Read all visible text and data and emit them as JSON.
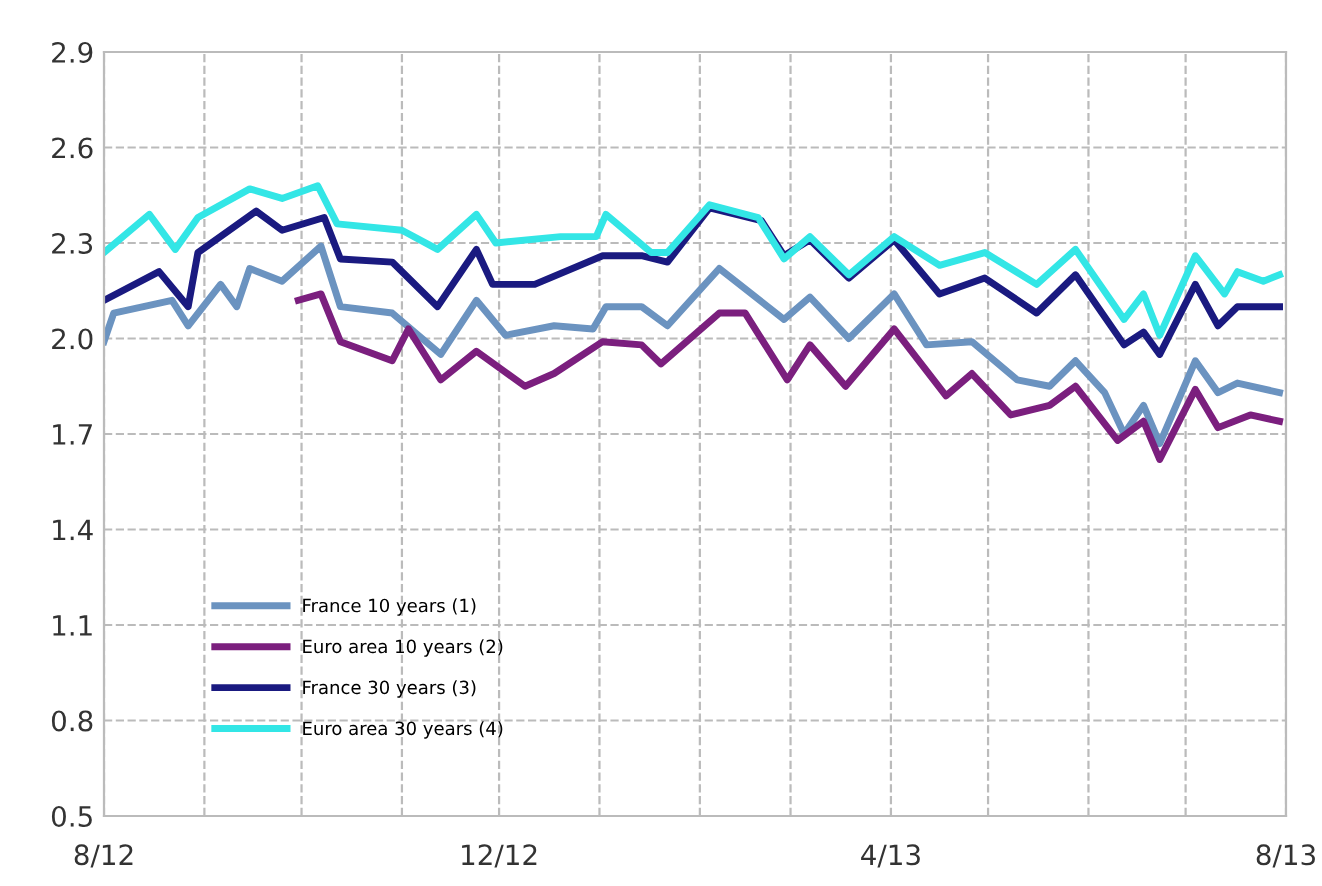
{
  "chart_data": {
    "type": "line",
    "xlim": [
      "2012-08-01",
      "2013-08-01"
    ],
    "xticks": [
      {
        "value": "2012-08-01",
        "label": "8/12"
      },
      {
        "value": "2012-09-01",
        "label": null
      },
      {
        "value": "2012-10-01",
        "label": null
      },
      {
        "value": "2012-11-01",
        "label": null
      },
      {
        "value": "2012-12-01",
        "label": "12/12"
      },
      {
        "value": "2013-01-01",
        "label": null
      },
      {
        "value": "2013-02-01",
        "label": null
      },
      {
        "value": "2013-03-01",
        "label": null
      },
      {
        "value": "2013-04-01",
        "label": "4/13"
      },
      {
        "value": "2013-05-01",
        "label": null
      },
      {
        "value": "2013-06-01",
        "label": null
      },
      {
        "value": "2013-07-01",
        "label": null
      },
      {
        "value": "2013-08-01",
        "label": "8/13"
      }
    ],
    "ylim": [
      0.5,
      2.9
    ],
    "yticks": [
      {
        "value": 0.5,
        "label": "0.5"
      },
      {
        "value": 0.8,
        "label": "0.8"
      },
      {
        "value": 1.1,
        "label": "1.1"
      },
      {
        "value": 1.4,
        "label": "1.4"
      },
      {
        "value": 1.7,
        "label": "1.7"
      },
      {
        "value": 2.0,
        "label": "2.0"
      },
      {
        "value": 2.3,
        "label": "2.3"
      },
      {
        "value": 2.6,
        "label": "2.6"
      },
      {
        "value": 2.9,
        "label": "2.9"
      }
    ],
    "grid": true,
    "legend": "bottom left",
    "marker": "none",
    "line_style": "solid",
    "series": [
      {
        "name": "France 10 years (1)",
        "color": "#6b93c0",
        "x": [
          "2012-08-01",
          "2012-08-04",
          "2012-08-22",
          "2012-08-27",
          "2012-09-06",
          "2012-09-11",
          "2012-09-15",
          "2012-09-25",
          "2012-10-07",
          "2012-10-13",
          "2012-10-29",
          "2012-11-13",
          "2012-11-24",
          "2012-12-03",
          "2012-12-18",
          "2012-12-30",
          "2013-01-03",
          "2013-01-14",
          "2013-01-22",
          "2013-02-07",
          "2013-02-27",
          "2013-03-07",
          "2013-03-19",
          "2013-04-02",
          "2013-04-12",
          "2013-04-26",
          "2013-05-10",
          "2013-05-20",
          "2013-05-28",
          "2013-06-06",
          "2013-06-12",
          "2013-06-18",
          "2013-06-23",
          "2013-07-04",
          "2013-07-11",
          "2013-07-17",
          "2013-07-30"
        ],
        "values": [
          1.99,
          2.08,
          2.12,
          2.04,
          2.17,
          2.1,
          2.22,
          2.18,
          2.29,
          2.1,
          2.08,
          1.95,
          2.12,
          2.01,
          2.04,
          2.03,
          2.1,
          2.1,
          2.04,
          2.22,
          2.06,
          2.13,
          2.0,
          2.14,
          1.98,
          1.99,
          1.87,
          1.85,
          1.93,
          1.83,
          1.7,
          1.79,
          1.67,
          1.93,
          1.83,
          1.86,
          1.83
        ]
      },
      {
        "name": "Euro area 10 years (2)",
        "color": "#7b1f7e",
        "x": [
          "2012-09-30",
          "2012-10-07",
          "2012-10-13",
          "2012-10-29",
          "2012-11-03",
          "2012-11-13",
          "2012-11-24",
          "2012-12-09",
          "2012-12-18",
          "2013-01-02",
          "2013-01-14",
          "2013-01-20",
          "2013-02-07",
          "2013-02-15",
          "2013-02-28",
          "2013-03-07",
          "2013-03-18",
          "2013-04-02",
          "2013-04-18",
          "2013-04-26",
          "2013-05-08",
          "2013-05-20",
          "2013-05-28",
          "2013-06-10",
          "2013-06-18",
          "2013-06-23",
          "2013-07-04",
          "2013-07-11",
          "2013-07-21",
          "2013-07-30"
        ],
        "values": [
          2.12,
          2.14,
          1.99,
          1.93,
          2.03,
          1.87,
          1.96,
          1.85,
          1.89,
          1.99,
          1.98,
          1.92,
          2.08,
          2.08,
          1.87,
          1.98,
          1.85,
          2.03,
          1.82,
          1.89,
          1.76,
          1.79,
          1.85,
          1.68,
          1.74,
          1.62,
          1.84,
          1.72,
          1.76,
          1.74
        ]
      },
      {
        "name": "France 30 years (3)",
        "color": "#1a1a80",
        "x": [
          "2012-08-01",
          "2012-08-18",
          "2012-08-27",
          "2012-08-30",
          "2012-09-17",
          "2012-09-25",
          "2012-10-08",
          "2012-10-13",
          "2012-10-29",
          "2012-11-12",
          "2012-11-24",
          "2012-11-29",
          "2012-12-12",
          "2013-01-02",
          "2013-01-14",
          "2013-01-22",
          "2013-02-04",
          "2013-02-20",
          "2013-02-27",
          "2013-03-07",
          "2013-03-19",
          "2013-04-02",
          "2013-04-16",
          "2013-04-30",
          "2013-05-16",
          "2013-05-28",
          "2013-06-12",
          "2013-06-18",
          "2013-06-23",
          "2013-07-04",
          "2013-07-11",
          "2013-07-17",
          "2013-07-30"
        ],
        "values": [
          2.12,
          2.21,
          2.1,
          2.27,
          2.4,
          2.34,
          2.38,
          2.25,
          2.24,
          2.1,
          2.28,
          2.17,
          2.17,
          2.26,
          2.26,
          2.24,
          2.41,
          2.37,
          2.26,
          2.31,
          2.19,
          2.31,
          2.14,
          2.19,
          2.08,
          2.2,
          1.98,
          2.02,
          1.95,
          2.17,
          2.04,
          2.1,
          2.1
        ]
      },
      {
        "name": "Euro area 30 years (4)",
        "color": "#33e6e6",
        "x": [
          "2012-08-01",
          "2012-08-15",
          "2012-08-23",
          "2012-08-30",
          "2012-09-15",
          "2012-09-25",
          "2012-10-06",
          "2012-10-12",
          "2012-11-01",
          "2012-11-12",
          "2012-11-24",
          "2012-11-30",
          "2012-12-20",
          "2012-12-31",
          "2013-01-03",
          "2013-01-17",
          "2013-01-22",
          "2013-02-04",
          "2013-02-19",
          "2013-02-27",
          "2013-03-07",
          "2013-03-19",
          "2013-04-02",
          "2013-04-16",
          "2013-04-30",
          "2013-05-16",
          "2013-05-28",
          "2013-06-12",
          "2013-06-18",
          "2013-06-23",
          "2013-07-04",
          "2013-07-13",
          "2013-07-17",
          "2013-07-25",
          "2013-07-30"
        ],
        "values": [
          2.27,
          2.39,
          2.28,
          2.38,
          2.47,
          2.44,
          2.48,
          2.36,
          2.34,
          2.28,
          2.39,
          2.3,
          2.32,
          2.32,
          2.39,
          2.27,
          2.27,
          2.42,
          2.38,
          2.25,
          2.32,
          2.2,
          2.32,
          2.23,
          2.27,
          2.17,
          2.28,
          2.06,
          2.14,
          2.01,
          2.26,
          2.14,
          2.21,
          2.18,
          2.2
        ]
      }
    ]
  }
}
